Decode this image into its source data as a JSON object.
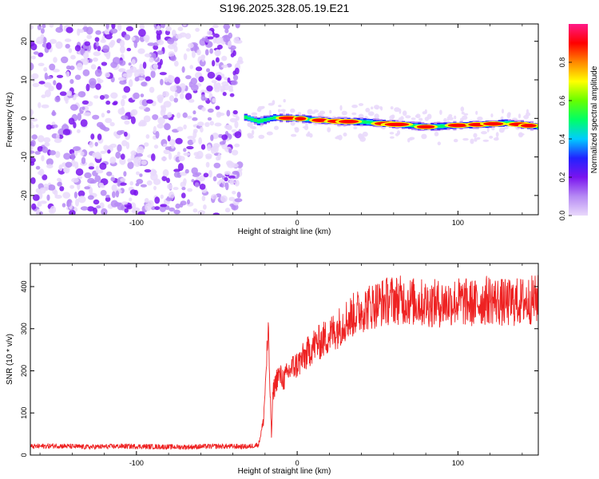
{
  "title": "S196.2025.328.05.19.E21",
  "chart_data": [
    {
      "type": "heatmap",
      "title": "S196.2025.328.05.19.E21",
      "xlabel": "Height of straight line (km)",
      "ylabel": "Frequency (Hz)",
      "xlim": [
        -166,
        150
      ],
      "ylim": [
        -25,
        24.5
      ],
      "xticks": [
        -100,
        0,
        100
      ],
      "yticks": [
        -20,
        -10,
        0,
        10,
        20
      ],
      "noise_region_x": [
        -166,
        -35
      ],
      "ridge": {
        "x": [
          -33,
          -25,
          -15,
          0,
          20,
          40,
          60,
          80,
          100,
          120,
          130,
          150
        ],
        "freq": [
          0.3,
          -0.8,
          0.2,
          0.0,
          -0.7,
          -0.9,
          -1.5,
          -2.2,
          -1.8,
          -1.5,
          -1.1,
          -2.2
        ]
      },
      "colorbar": {
        "label": "Normalized spectral amplitude",
        "range": [
          0,
          1
        ],
        "ticks": [
          "0.0",
          "0.2",
          "0.4",
          "0.6",
          "0.8"
        ],
        "colors": [
          "#e9d9fb",
          "#b68af4",
          "#7a14ef",
          "#2222ff",
          "#00ccff",
          "#00ff66",
          "#66ff00",
          "#ffff00",
          "#ff8800",
          "#ff0000",
          "#ff1a88"
        ]
      }
    },
    {
      "type": "line",
      "xlabel": "Height of straight line (km)",
      "ylabel": "SNR (10 * v/v)",
      "xlim": [
        -166,
        150
      ],
      "ylim": [
        0,
        455
      ],
      "xticks": [
        -100,
        0,
        100
      ],
      "yticks": [
        0,
        100,
        200,
        300,
        400
      ],
      "series": [
        {
          "name": "SNR",
          "color": "#ee2222",
          "x": [
            -166,
            -150,
            -130,
            -110,
            -90,
            -70,
            -50,
            -30,
            -24,
            -21,
            -20,
            -19,
            -18,
            -17,
            -16,
            -15,
            -12,
            -8,
            -4,
            0,
            5,
            10,
            15,
            20,
            25,
            30,
            40,
            50,
            60,
            70,
            80,
            90,
            100,
            110,
            120,
            130,
            140,
            150
          ],
          "y": [
            20,
            22,
            19,
            21,
            20,
            19,
            21,
            20,
            25,
            80,
            150,
            230,
            285,
            170,
            45,
            150,
            190,
            180,
            205,
            215,
            235,
            260,
            270,
            285,
            300,
            320,
            345,
            360,
            370,
            365,
            360,
            360,
            365,
            360,
            370,
            360,
            365,
            370
          ]
        }
      ]
    }
  ]
}
